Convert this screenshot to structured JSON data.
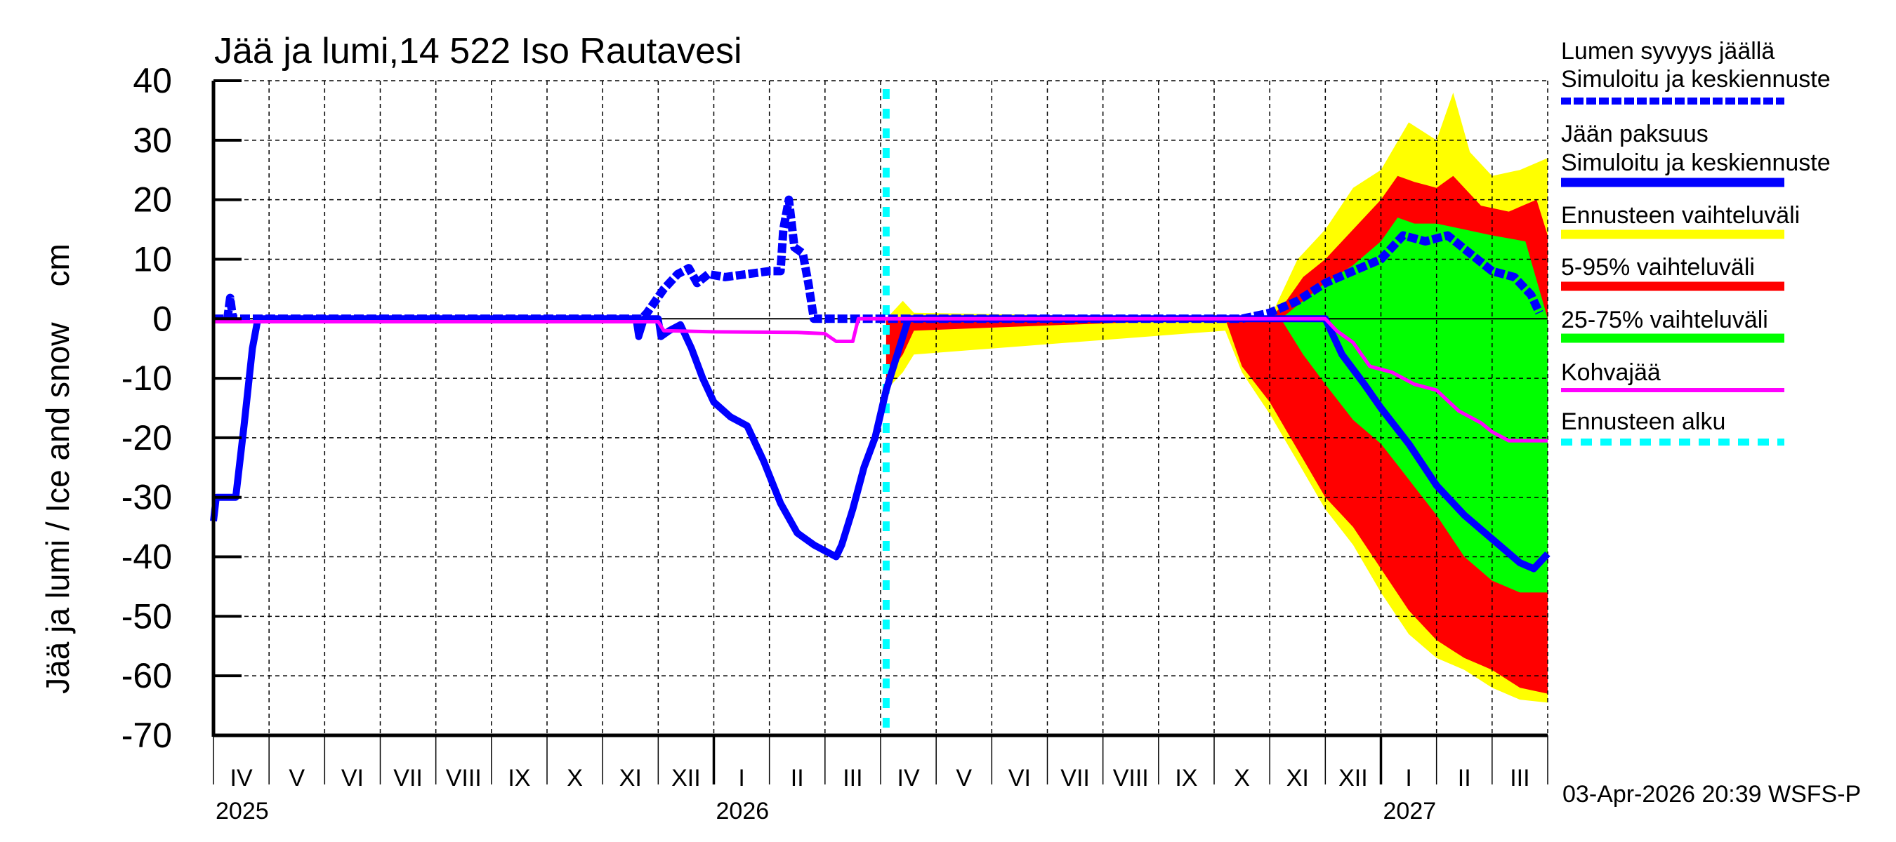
{
  "chart_data": {
    "type": "area",
    "title": "Jää ja lumi,14 522 Iso Rautavesi",
    "xlabel": "",
    "ylabel": "Jää ja lumi / Ice and snow    cm",
    "ylim": [
      -70,
      40
    ],
    "yticks": [
      40,
      30,
      20,
      10,
      0,
      -10,
      -20,
      -30,
      -40,
      -50,
      -60,
      -70
    ],
    "grid": true,
    "legend_position": "right",
    "x_axis": {
      "start": "2025-04-01",
      "end": "2027-04-01",
      "month_labels": [
        "IV",
        "V",
        "VI",
        "VII",
        "VIII",
        "IX",
        "X",
        "XI",
        "XII",
        "I",
        "II",
        "III",
        "IV",
        "V",
        "VI",
        "VII",
        "VIII",
        "IX",
        "X",
        "XI",
        "XII",
        "I",
        "II",
        "III"
      ],
      "year_labels": [
        {
          "label": "2025",
          "month_index": 0
        },
        {
          "label": "2026",
          "month_index": 9
        },
        {
          "label": "2027",
          "month_index": 21
        }
      ],
      "note": "x values below are months elapsed since 2025-04-01"
    },
    "forecast_start_month": 12.1,
    "series": [
      {
        "name": "Lumen syvyys jäällä – Simuloitu ja keskiennuste",
        "role": "snow_median",
        "color": "#0000ff",
        "style": "dashed",
        "points": [
          [
            0,
            0
          ],
          [
            0.25,
            0
          ],
          [
            0.3,
            3.5
          ],
          [
            0.35,
            0
          ],
          [
            7.7,
            0
          ],
          [
            7.8,
            1
          ],
          [
            7.95,
            3
          ],
          [
            8.1,
            5
          ],
          [
            8.35,
            7.5
          ],
          [
            8.55,
            8.5
          ],
          [
            8.7,
            6
          ],
          [
            8.9,
            7.5
          ],
          [
            9.2,
            7
          ],
          [
            9.6,
            7.5
          ],
          [
            10.0,
            8
          ],
          [
            10.2,
            8
          ],
          [
            10.25,
            15
          ],
          [
            10.35,
            20
          ],
          [
            10.45,
            12
          ],
          [
            10.6,
            11
          ],
          [
            10.7,
            6
          ],
          [
            10.8,
            0
          ],
          [
            12.1,
            0
          ],
          [
            18.5,
            0
          ],
          [
            19.0,
            1
          ],
          [
            19.5,
            3
          ],
          [
            20.0,
            6
          ],
          [
            20.5,
            8
          ],
          [
            21.0,
            10
          ],
          [
            21.4,
            14
          ],
          [
            21.8,
            13
          ],
          [
            22.2,
            14
          ],
          [
            22.6,
            11
          ],
          [
            23.0,
            8
          ],
          [
            23.4,
            7
          ],
          [
            23.7,
            4
          ],
          [
            23.85,
            1
          ]
        ]
      },
      {
        "name": "Jään paksuus – Simuloitu ja keskiennuste",
        "role": "ice_median",
        "color": "#0000ff",
        "style": "solid",
        "points": [
          [
            0,
            -34
          ],
          [
            0.05,
            -30
          ],
          [
            0.4,
            -30
          ],
          [
            0.55,
            -18
          ],
          [
            0.7,
            -5
          ],
          [
            0.8,
            0
          ],
          [
            7.6,
            0
          ],
          [
            7.65,
            -3
          ],
          [
            7.75,
            0
          ],
          [
            8.0,
            0
          ],
          [
            8.05,
            -3
          ],
          [
            8.2,
            -2
          ],
          [
            8.4,
            -1
          ],
          [
            8.6,
            -5
          ],
          [
            8.8,
            -10
          ],
          [
            9.0,
            -14
          ],
          [
            9.3,
            -16.5
          ],
          [
            9.6,
            -18
          ],
          [
            9.9,
            -24
          ],
          [
            10.2,
            -31
          ],
          [
            10.5,
            -36
          ],
          [
            10.8,
            -38
          ],
          [
            11.2,
            -40
          ],
          [
            11.3,
            -38
          ],
          [
            11.5,
            -32
          ],
          [
            11.7,
            -25
          ],
          [
            11.9,
            -20
          ],
          [
            12.1,
            -12
          ],
          [
            12.4,
            -3
          ],
          [
            12.5,
            0
          ],
          [
            20.0,
            0
          ],
          [
            20.3,
            -6
          ],
          [
            20.7,
            -11
          ],
          [
            21.0,
            -15
          ],
          [
            21.5,
            -21
          ],
          [
            22.0,
            -28
          ],
          [
            22.5,
            -33
          ],
          [
            23.0,
            -37
          ],
          [
            23.5,
            -41
          ],
          [
            23.75,
            -42
          ],
          [
            24.0,
            -39.5
          ]
        ]
      },
      {
        "name": "Kohvajää",
        "role": "slush_ice",
        "color": "#ff00ff",
        "style": "solid",
        "points": [
          [
            0,
            -0.5
          ],
          [
            8.0,
            -0.5
          ],
          [
            8.1,
            -2
          ],
          [
            9.0,
            -2.2
          ],
          [
            10.5,
            -2.3
          ],
          [
            11.0,
            -2.5
          ],
          [
            11.2,
            -3.8
          ],
          [
            11.5,
            -3.8
          ],
          [
            11.6,
            0
          ],
          [
            20.0,
            0
          ],
          [
            20.2,
            -2
          ],
          [
            20.5,
            -4
          ],
          [
            20.8,
            -8
          ],
          [
            21.2,
            -9
          ],
          [
            21.6,
            -11
          ],
          [
            22.0,
            -12
          ],
          [
            22.4,
            -15.5
          ],
          [
            22.8,
            -17.5
          ],
          [
            23.0,
            -19
          ],
          [
            23.3,
            -20.5
          ],
          [
            24.0,
            -20.5
          ]
        ]
      },
      {
        "name": "Ennusteen vaihteluväli",
        "role": "range_full",
        "color": "#ffff00",
        "upper": [
          [
            12.1,
            0
          ],
          [
            12.4,
            3
          ],
          [
            12.6,
            1
          ],
          [
            19.0,
            0
          ],
          [
            19.0,
            4
          ],
          [
            19.5,
            10
          ],
          [
            20.0,
            15
          ],
          [
            20.5,
            22
          ],
          [
            21.0,
            25
          ],
          [
            21.5,
            33
          ],
          [
            22.0,
            30
          ],
          [
            22.3,
            38
          ],
          [
            22.6,
            28
          ],
          [
            23.0,
            24
          ],
          [
            23.5,
            25
          ],
          [
            24.0,
            27
          ]
        ],
        "lower": [
          [
            12.1,
            -12
          ],
          [
            12.4,
            -9
          ],
          [
            12.6,
            -6
          ],
          [
            18.2,
            -2
          ],
          [
            18.5,
            -9
          ],
          [
            19.0,
            -16
          ],
          [
            19.5,
            -24
          ],
          [
            20.0,
            -32
          ],
          [
            20.5,
            -38
          ],
          [
            21.0,
            -46
          ],
          [
            21.5,
            -53
          ],
          [
            22.0,
            -57
          ],
          [
            22.5,
            -59
          ],
          [
            23.0,
            -62
          ],
          [
            23.5,
            -64
          ],
          [
            24.0,
            -64.5
          ]
        ]
      },
      {
        "name": "5-95% vaihteluväli",
        "role": "range_5_95",
        "color": "#ff0000",
        "upper": [
          [
            12.1,
            0
          ],
          [
            12.6,
            0
          ],
          [
            19.0,
            0
          ],
          [
            19.3,
            3
          ],
          [
            19.6,
            7
          ],
          [
            20.0,
            10
          ],
          [
            20.5,
            15
          ],
          [
            21.0,
            20
          ],
          [
            21.3,
            24
          ],
          [
            21.6,
            23
          ],
          [
            22.0,
            22
          ],
          [
            22.3,
            24
          ],
          [
            22.8,
            19
          ],
          [
            23.3,
            18
          ],
          [
            23.8,
            20
          ],
          [
            24.0,
            14
          ]
        ],
        "lower": [
          [
            12.1,
            -10
          ],
          [
            12.4,
            -6
          ],
          [
            12.6,
            -2
          ],
          [
            18.2,
            0
          ],
          [
            18.5,
            -8
          ],
          [
            19.0,
            -14
          ],
          [
            19.5,
            -22
          ],
          [
            20.0,
            -30
          ],
          [
            20.5,
            -35
          ],
          [
            21.0,
            -42
          ],
          [
            21.5,
            -49
          ],
          [
            22.0,
            -54
          ],
          [
            22.5,
            -57
          ],
          [
            23.0,
            -59
          ],
          [
            23.5,
            -62
          ],
          [
            24.0,
            -63
          ]
        ]
      },
      {
        "name": "25-75% vaihteluväli",
        "role": "range_25_75",
        "color": "#00ff00",
        "upper": [
          [
            19.2,
            0
          ],
          [
            19.6,
            3
          ],
          [
            20.0,
            6
          ],
          [
            20.5,
            9
          ],
          [
            21.0,
            13
          ],
          [
            21.3,
            17
          ],
          [
            21.6,
            16
          ],
          [
            22.0,
            16
          ],
          [
            22.5,
            15
          ],
          [
            23.0,
            14
          ],
          [
            23.6,
            13
          ],
          [
            24.0,
            0
          ]
        ],
        "lower": [
          [
            19.2,
            0
          ],
          [
            19.6,
            -6
          ],
          [
            20.0,
            -11
          ],
          [
            20.5,
            -17
          ],
          [
            21.0,
            -21
          ],
          [
            21.5,
            -27
          ],
          [
            22.0,
            -33
          ],
          [
            22.5,
            -40
          ],
          [
            23.0,
            -44
          ],
          [
            23.5,
            -46
          ],
          [
            24.0,
            -46
          ]
        ]
      }
    ]
  },
  "legend": {
    "items": [
      {
        "line1": "Lumen syvyys jäällä",
        "line2": "Simuloitu ja keskiennuste",
        "color": "#0000ff",
        "style": "dashed"
      },
      {
        "line1": "Jään paksuus",
        "line2": "Simuloitu ja keskiennuste",
        "color": "#0000ff",
        "style": "solid"
      },
      {
        "line1": "Ennusteen vaihteluväli",
        "line2": "",
        "color": "#ffff00",
        "style": "band"
      },
      {
        "line1": "5-95% vaihteluväli",
        "line2": "",
        "color": "#ff0000",
        "style": "band"
      },
      {
        "line1": "25-75% vaihteluväli",
        "line2": "",
        "color": "#00ff00",
        "style": "band"
      },
      {
        "line1": "Kohvajää",
        "line2": "",
        "color": "#ff00ff",
        "style": "thin"
      },
      {
        "line1": "Ennusteen alku",
        "line2": "",
        "color": "#00ffff",
        "style": "dotted"
      }
    ]
  },
  "footer": {
    "timestamp": "03-Apr-2026 20:39 WSFS-P"
  },
  "colors": {
    "grid": "#000000",
    "forecast_start": "#00ffff"
  }
}
